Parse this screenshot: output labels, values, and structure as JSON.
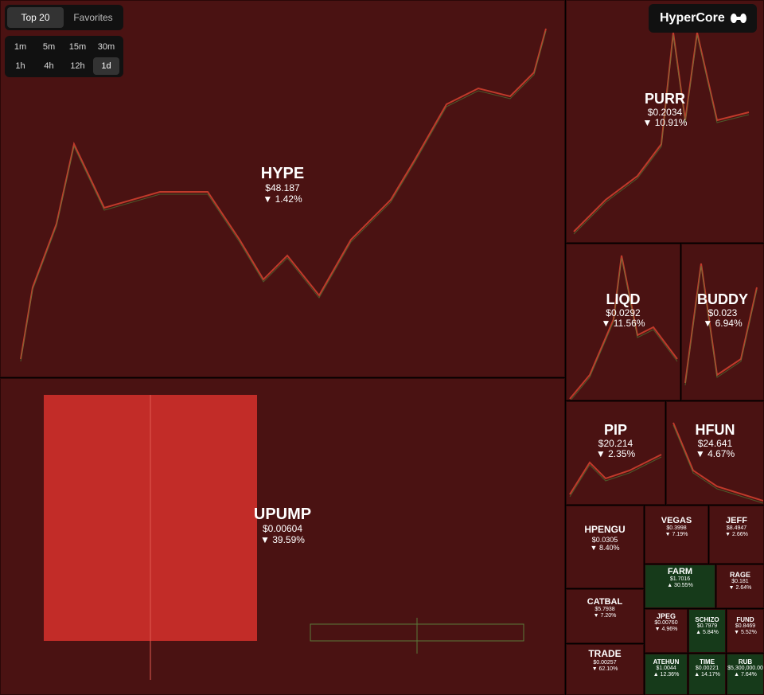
{
  "header": {
    "tabs": [
      "Top 20",
      "Favorites"
    ],
    "intervals": [
      "1m",
      "5m",
      "15m",
      "30m",
      "1h",
      "4h",
      "12h",
      "1d"
    ],
    "logo": "HyperCore"
  },
  "tiles": [
    {
      "name": "HYPE",
      "price": "$48.187",
      "change": "▼ 1.42%"
    },
    {
      "name": "UPUMP",
      "price": "$0.00604",
      "change": "▼ 39.59%"
    },
    {
      "name": "PURR",
      "price": "$0.2034",
      "change": "▼ 10.91%"
    },
    {
      "name": "LIQD",
      "price": "$0.0292",
      "change": "▼ 11.56%"
    },
    {
      "name": "BUDDY",
      "price": "$0.023",
      "change": "▼ 6.94%"
    },
    {
      "name": "PIP",
      "price": "$20.214",
      "change": "▼ 2.35%"
    },
    {
      "name": "HFUN",
      "price": "$24.641",
      "change": "▼ 4.67%"
    },
    {
      "name": "HPENGU",
      "price": "$0.0305",
      "change": "▼ 8.40%"
    },
    {
      "name": "VEGAS",
      "price": "$0.3998",
      "change": "▼ 7.19%"
    },
    {
      "name": "JEFF",
      "price": "$8.4947",
      "change": "▼ 2.66%"
    },
    {
      "name": "FARM",
      "price": "$1.7016",
      "change": "▲ 30.55%"
    },
    {
      "name": "RAGE",
      "price": "$0.181",
      "change": "▼ 2.64%"
    },
    {
      "name": "CATBAL",
      "price": "$5.7938",
      "change": "▼ 7.20%"
    },
    {
      "name": "JPEG",
      "price": "$0.00760",
      "change": "▼ 4.96%"
    },
    {
      "name": "SCHIZO",
      "price": "$0.7979",
      "change": "▲ 5.84%"
    },
    {
      "name": "FUND",
      "price": "$0.8469",
      "change": "▼ 5.52%"
    },
    {
      "name": "TRADE",
      "price": "$0.00257",
      "change": "▼ 62.10%"
    },
    {
      "name": "ATEHUN",
      "price": "$1.0044",
      "change": "▲ 12.36%"
    },
    {
      "name": "TIME",
      "price": "$0.00221",
      "change": "▲ 14.17%"
    },
    {
      "name": "RUB",
      "price": "$5,300,000.00",
      "change": "▲ 7.64%"
    }
  ]
}
